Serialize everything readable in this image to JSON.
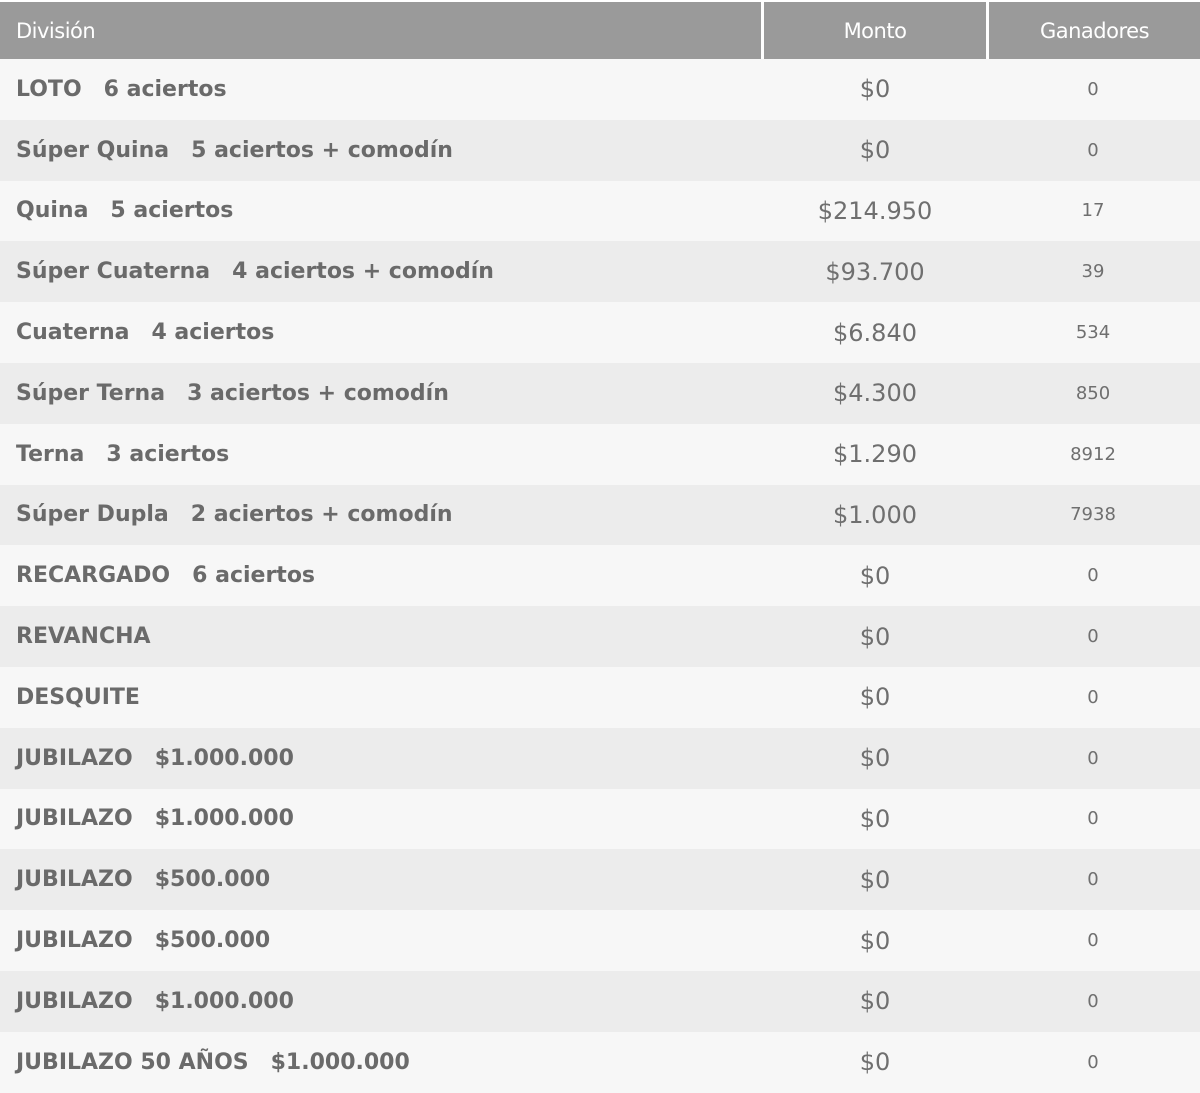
{
  "table": {
    "headers": {
      "division": "División",
      "monto": "Monto",
      "ganadores": "Ganadores"
    },
    "rows": [
      {
        "name": "LOTO",
        "detail": "6 aciertos",
        "monto": "$0",
        "ganadores": "0"
      },
      {
        "name": "Súper Quina",
        "detail": "5 aciertos + comodín",
        "monto": "$0",
        "ganadores": "0"
      },
      {
        "name": "Quina",
        "detail": "5 aciertos",
        "monto": "$214.950",
        "ganadores": "17"
      },
      {
        "name": "Súper Cuaterna",
        "detail": "4 aciertos + comodín",
        "monto": "$93.700",
        "ganadores": "39"
      },
      {
        "name": "Cuaterna",
        "detail": "4 aciertos",
        "monto": "$6.840",
        "ganadores": "534"
      },
      {
        "name": "Súper Terna",
        "detail": "3 aciertos + comodín",
        "monto": "$4.300",
        "ganadores": "850"
      },
      {
        "name": "Terna",
        "detail": "3 aciertos",
        "monto": "$1.290",
        "ganadores": "8912"
      },
      {
        "name": "Súper Dupla",
        "detail": "2 aciertos + comodín",
        "monto": "$1.000",
        "ganadores": "7938"
      },
      {
        "name": "RECARGADO",
        "detail": "6 aciertos",
        "monto": "$0",
        "ganadores": "0"
      },
      {
        "name": "REVANCHA",
        "detail": "",
        "monto": "$0",
        "ganadores": "0"
      },
      {
        "name": "DESQUITE",
        "detail": "",
        "monto": "$0",
        "ganadores": "0"
      },
      {
        "name": "JUBILAZO",
        "detail": "$1.000.000",
        "monto": "$0",
        "ganadores": "0"
      },
      {
        "name": "JUBILAZO",
        "detail": "$1.000.000",
        "monto": "$0",
        "ganadores": "0"
      },
      {
        "name": "JUBILAZO",
        "detail": "$500.000",
        "monto": "$0",
        "ganadores": "0"
      },
      {
        "name": "JUBILAZO",
        "detail": "$500.000",
        "monto": "$0",
        "ganadores": "0"
      },
      {
        "name": "JUBILAZO",
        "detail": "$1.000.000",
        "monto": "$0",
        "ganadores": "0"
      },
      {
        "name": "JUBILAZO 50 AÑOS",
        "detail": "$1.000.000",
        "monto": "$0",
        "ganadores": "0"
      }
    ]
  }
}
